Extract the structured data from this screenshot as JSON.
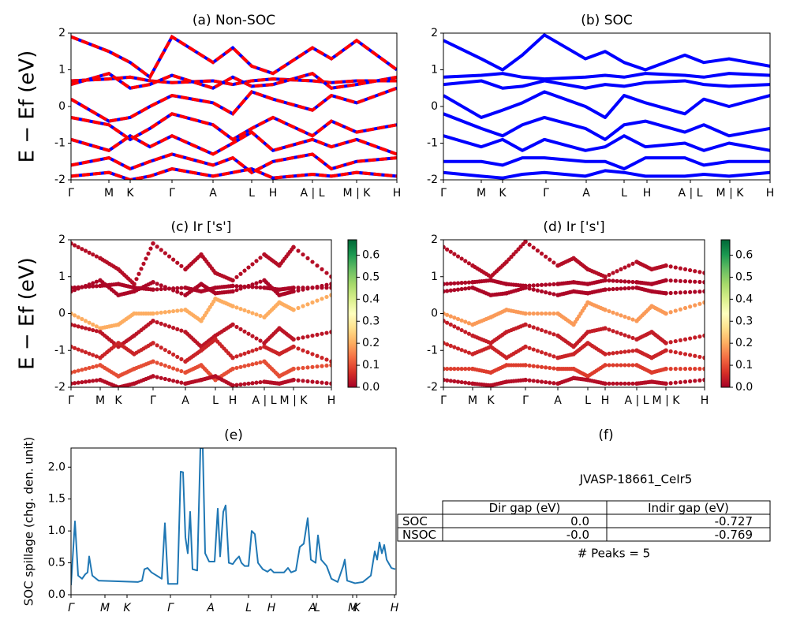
{
  "chart_data": [
    {
      "type": "line",
      "title": "(a) Non-SOC",
      "ylabel": "E − Ef (eV)",
      "color": "#ff0000",
      "dash_color": "#0000ff",
      "line_width": 4,
      "x": [
        0,
        48,
        75,
        100,
        128,
        180,
        205,
        229,
        256,
        306,
        330,
        362,
        413
      ],
      "xlim": [
        0,
        413
      ],
      "xticks": [
        {
          "value": 0,
          "label": "Γ"
        },
        {
          "value": 48,
          "label": "M"
        },
        {
          "value": 75,
          "label": "K"
        },
        {
          "value": 128,
          "label": "Γ"
        },
        {
          "value": 180,
          "label": "A"
        },
        {
          "value": 229,
          "label": "L"
        },
        {
          "value": 256,
          "label": "H"
        },
        {
          "value": 306,
          "label": "A | L"
        },
        {
          "value": 362,
          "label": "M | K"
        },
        {
          "value": 413,
          "label": "H"
        }
      ],
      "ylim": [
        -2,
        2
      ],
      "yticks": [
        -2,
        -1,
        0,
        1,
        2
      ],
      "series": [
        {
          "values": [
            1.9,
            1.5,
            1.2,
            0.8,
            1.9,
            1.2,
            1.6,
            1.1,
            0.9,
            1.6,
            1.3,
            1.8,
            1.0
          ]
        },
        {
          "values": [
            0.7,
            0.75,
            0.8,
            0.7,
            0.65,
            0.7,
            0.6,
            0.7,
            0.75,
            0.7,
            0.65,
            0.7,
            0.7
          ]
        },
        {
          "values": [
            0.6,
            0.9,
            0.5,
            0.6,
            0.85,
            0.5,
            0.8,
            0.55,
            0.6,
            0.9,
            0.5,
            0.6,
            0.8
          ]
        },
        {
          "values": [
            0.2,
            -0.4,
            -0.3,
            0.0,
            0.3,
            0.1,
            -0.2,
            0.4,
            0.2,
            -0.1,
            0.3,
            0.1,
            0.5
          ]
        },
        {
          "values": [
            -0.3,
            -0.5,
            -0.9,
            -0.6,
            -0.2,
            -0.5,
            -0.9,
            -0.6,
            -0.3,
            -0.8,
            -0.4,
            -0.7,
            -0.5
          ]
        },
        {
          "values": [
            -0.9,
            -1.2,
            -0.8,
            -1.1,
            -0.8,
            -1.3,
            -1.0,
            -0.7,
            -1.2,
            -0.9,
            -1.1,
            -0.9,
            -1.3
          ]
        },
        {
          "values": [
            -1.6,
            -1.4,
            -1.7,
            -1.5,
            -1.3,
            -1.6,
            -1.4,
            -1.8,
            -1.5,
            -1.3,
            -1.7,
            -1.5,
            -1.4
          ]
        },
        {
          "values": [
            -1.9,
            -1.8,
            -2.0,
            -1.9,
            -1.7,
            -1.9,
            -1.8,
            -1.7,
            -1.95,
            -1.85,
            -1.9,
            -1.8,
            -1.9
          ]
        }
      ]
    },
    {
      "type": "line",
      "title": "(b) SOC",
      "color": "#0000ff",
      "line_width": 4,
      "x": [
        0,
        48,
        75,
        100,
        128,
        180,
        205,
        229,
        256,
        306,
        330,
        362,
        414
      ],
      "xlim": [
        0,
        414
      ],
      "xticks": [
        {
          "value": 0,
          "label": "Γ"
        },
        {
          "value": 48,
          "label": "M"
        },
        {
          "value": 75,
          "label": "K"
        },
        {
          "value": 130,
          "label": "Γ"
        },
        {
          "value": 181,
          "label": "A"
        },
        {
          "value": 229,
          "label": "L"
        },
        {
          "value": 258,
          "label": "H"
        },
        {
          "value": 313,
          "label": "A | L"
        },
        {
          "value": 363,
          "label": "M | K"
        },
        {
          "value": 414,
          "label": "H"
        }
      ],
      "ylim": [
        -2,
        2
      ],
      "yticks": [
        -2,
        -1,
        0,
        1,
        2
      ],
      "series": [
        {
          "values": [
            1.8,
            1.3,
            1.0,
            1.4,
            1.95,
            1.3,
            1.5,
            1.2,
            1.0,
            1.4,
            1.2,
            1.3,
            1.1
          ]
        },
        {
          "values": [
            0.8,
            0.85,
            0.9,
            0.8,
            0.75,
            0.8,
            0.85,
            0.8,
            0.9,
            0.85,
            0.8,
            0.9,
            0.85
          ]
        },
        {
          "values": [
            0.6,
            0.7,
            0.5,
            0.55,
            0.7,
            0.5,
            0.6,
            0.55,
            0.65,
            0.7,
            0.6,
            0.55,
            0.6
          ]
        },
        {
          "values": [
            0.3,
            -0.3,
            -0.1,
            0.1,
            0.4,
            0.0,
            -0.3,
            0.3,
            0.1,
            -0.2,
            0.2,
            0.0,
            0.3
          ]
        },
        {
          "values": [
            -0.2,
            -0.6,
            -0.8,
            -0.5,
            -0.3,
            -0.6,
            -0.9,
            -0.5,
            -0.4,
            -0.7,
            -0.5,
            -0.8,
            -0.6
          ]
        },
        {
          "values": [
            -0.8,
            -1.1,
            -0.9,
            -1.2,
            -0.9,
            -1.2,
            -1.1,
            -0.8,
            -1.1,
            -1.0,
            -1.2,
            -1.0,
            -1.2
          ]
        },
        {
          "values": [
            -1.5,
            -1.5,
            -1.6,
            -1.4,
            -1.4,
            -1.5,
            -1.5,
            -1.7,
            -1.4,
            -1.4,
            -1.6,
            -1.5,
            -1.5
          ]
        },
        {
          "values": [
            -1.8,
            -1.9,
            -1.95,
            -1.85,
            -1.8,
            -1.9,
            -1.75,
            -1.8,
            -1.9,
            -1.9,
            -1.85,
            -1.9,
            -1.8
          ]
        }
      ]
    },
    {
      "type": "scatter",
      "title": "(c)  Ir ['s']",
      "ylabel": "E − Ef (eV)",
      "colormap": [
        "#a50026",
        "#d73027",
        "#f46d43",
        "#fdae61",
        "#fee08b",
        "#ffffbf",
        "#d9ef8b",
        "#a6d96a",
        "#66bd63",
        "#1a9850",
        "#006837"
      ],
      "clim": [
        0,
        0.67
      ],
      "cticks": [
        {
          "value": 0,
          "label": "0.0"
        },
        0.1,
        0.2,
        0.3,
        0.4,
        0.5,
        0.6
      ],
      "x": [
        0,
        37,
        60,
        80,
        104,
        145,
        165,
        183,
        205,
        245,
        264,
        282,
        330
      ],
      "xlim": [
        0,
        330
      ],
      "xticks": [
        {
          "value": 0,
          "label": "Γ"
        },
        {
          "value": 37,
          "label": "M"
        },
        {
          "value": 60,
          "label": "K"
        },
        {
          "value": 104,
          "label": "Γ"
        },
        {
          "value": 145,
          "label": "A"
        },
        {
          "value": 183,
          "label": "L"
        },
        {
          "value": 205,
          "label": "H"
        },
        {
          "value": 245,
          "label": "A | L"
        },
        {
          "value": 282,
          "label": "M | K"
        },
        {
          "value": 330,
          "label": "H"
        }
      ],
      "ylim": [
        -2,
        2
      ],
      "yticks": [
        -2,
        -1,
        0,
        1,
        2
      ],
      "series": [
        {
          "weight": 0.02,
          "values": [
            1.9,
            1.5,
            1.2,
            0.8,
            1.9,
            1.2,
            1.6,
            1.1,
            0.9,
            1.6,
            1.3,
            1.8,
            1.0
          ]
        },
        {
          "weight": 0.01,
          "values": [
            0.7,
            0.75,
            0.8,
            0.7,
            0.65,
            0.7,
            0.6,
            0.7,
            0.75,
            0.7,
            0.65,
            0.7,
            0.7
          ]
        },
        {
          "weight": 0.01,
          "values": [
            0.6,
            0.9,
            0.5,
            0.6,
            0.85,
            0.5,
            0.8,
            0.55,
            0.6,
            0.9,
            0.5,
            0.6,
            0.8
          ]
        },
        {
          "weight": 0.2,
          "values": [
            0.0,
            -0.4,
            -0.3,
            0.0,
            0.0,
            0.1,
            -0.2,
            0.4,
            0.2,
            -0.1,
            0.3,
            0.1,
            0.5
          ]
        },
        {
          "weight": 0.03,
          "values": [
            -0.3,
            -0.5,
            -0.9,
            -0.6,
            -0.2,
            -0.5,
            -0.9,
            -0.6,
            -0.3,
            -0.8,
            -0.4,
            -0.7,
            -0.5
          ]
        },
        {
          "weight": 0.05,
          "values": [
            -0.9,
            -1.2,
            -0.8,
            -1.1,
            -0.8,
            -1.3,
            -1.0,
            -0.7,
            -1.2,
            -0.9,
            -1.1,
            -0.9,
            -1.3
          ]
        },
        {
          "weight": 0.1,
          "values": [
            -1.6,
            -1.4,
            -1.7,
            -1.5,
            -1.3,
            -1.6,
            -1.4,
            -1.8,
            -1.5,
            -1.3,
            -1.7,
            -1.5,
            -1.4
          ]
        },
        {
          "weight": 0.02,
          "values": [
            -1.9,
            -1.8,
            -2.0,
            -1.9,
            -1.7,
            -1.9,
            -1.8,
            -1.7,
            -1.95,
            -1.85,
            -1.9,
            -1.8,
            -1.9
          ]
        }
      ]
    },
    {
      "type": "scatter",
      "title": "(d) Ir ['s']",
      "colormap": [
        "#a50026",
        "#d73027",
        "#f46d43",
        "#fdae61",
        "#fee08b",
        "#ffffbf",
        "#d9ef8b",
        "#a6d96a",
        "#66bd63",
        "#1a9850",
        "#006837"
      ],
      "clim": [
        0,
        0.67
      ],
      "cticks": [
        {
          "value": 0,
          "label": "0.0"
        },
        0.1,
        0.2,
        0.3,
        0.4,
        0.5,
        0.6
      ],
      "x": [
        0,
        37,
        60,
        80,
        104,
        145,
        165,
        183,
        205,
        245,
        264,
        282,
        331
      ],
      "xlim": [
        0,
        331
      ],
      "xticks": [
        {
          "value": 0,
          "label": "Γ"
        },
        {
          "value": 37,
          "label": "M"
        },
        {
          "value": 60,
          "label": "K"
        },
        {
          "value": 104,
          "label": "Γ"
        },
        {
          "value": 145,
          "label": "A"
        },
        {
          "value": 183,
          "label": "L"
        },
        {
          "value": 205,
          "label": "H"
        },
        {
          "value": 245,
          "label": "A | L"
        },
        {
          "value": 282,
          "label": "M | K"
        },
        {
          "value": 331,
          "label": "H"
        }
      ],
      "ylim": [
        -2,
        2
      ],
      "yticks": [
        -2,
        -1,
        0,
        1,
        2
      ],
      "series": [
        {
          "weight": 0.02,
          "values": [
            1.8,
            1.3,
            1.0,
            1.4,
            1.95,
            1.3,
            1.5,
            1.2,
            1.0,
            1.4,
            1.2,
            1.3,
            1.1
          ]
        },
        {
          "weight": 0.01,
          "values": [
            0.8,
            0.85,
            0.9,
            0.8,
            0.75,
            0.8,
            0.85,
            0.8,
            0.9,
            0.85,
            0.8,
            0.9,
            0.85
          ]
        },
        {
          "weight": 0.01,
          "values": [
            0.6,
            0.7,
            0.5,
            0.55,
            0.7,
            0.5,
            0.6,
            0.55,
            0.65,
            0.7,
            0.6,
            0.55,
            0.6
          ]
        },
        {
          "weight": 0.18,
          "values": [
            0.0,
            -0.3,
            -0.1,
            0.1,
            0.0,
            0.0,
            -0.3,
            0.3,
            0.1,
            -0.2,
            0.2,
            0.0,
            0.3
          ]
        },
        {
          "weight": 0.04,
          "values": [
            -0.2,
            -0.6,
            -0.8,
            -0.5,
            -0.3,
            -0.6,
            -0.9,
            -0.5,
            -0.4,
            -0.7,
            -0.5,
            -0.8,
            -0.6
          ]
        },
        {
          "weight": 0.05,
          "values": [
            -0.8,
            -1.1,
            -0.9,
            -1.2,
            -0.9,
            -1.2,
            -1.1,
            -0.8,
            -1.1,
            -1.0,
            -1.2,
            -1.0,
            -1.2
          ]
        },
        {
          "weight": 0.08,
          "values": [
            -1.5,
            -1.5,
            -1.6,
            -1.4,
            -1.4,
            -1.5,
            -1.5,
            -1.7,
            -1.4,
            -1.4,
            -1.6,
            -1.5,
            -1.5
          ]
        },
        {
          "weight": 0.02,
          "values": [
            -1.8,
            -1.9,
            -1.95,
            -1.85,
            -1.8,
            -1.9,
            -1.75,
            -1.8,
            -1.9,
            -1.9,
            -1.85,
            -1.9,
            -1.8
          ]
        }
      ]
    },
    {
      "type": "line",
      "title": "(e)",
      "ylabel": "SOC spillage (chg. den. unit)",
      "color": "#1f77b4",
      "line_width": 2,
      "italic_xticks": true,
      "x": [
        0,
        5,
        9,
        14,
        18,
        21,
        23,
        27,
        35,
        60,
        85,
        90,
        93,
        97,
        102,
        115,
        119,
        123,
        135,
        139,
        142,
        145,
        148,
        151,
        154,
        160,
        164,
        167,
        170,
        175,
        182,
        186,
        189,
        193,
        196,
        200,
        205,
        209,
        213,
        216,
        220,
        225,
        229,
        233,
        237,
        243,
        249,
        253,
        257,
        270,
        275,
        279,
        285,
        290,
        295,
        300,
        304,
        310,
        313,
        317,
        324,
        330,
        338,
        345,
        347,
        350,
        360,
        370,
        380,
        385,
        388,
        391,
        394,
        397,
        400,
        406,
        411
      ],
      "values": [
        0.15,
        1.15,
        0.3,
        0.25,
        0.32,
        0.35,
        0.6,
        0.3,
        0.22,
        0.21,
        0.2,
        0.22,
        0.4,
        0.42,
        0.35,
        0.25,
        1.12,
        0.17,
        0.17,
        1.93,
        1.92,
        0.9,
        0.65,
        1.3,
        0.4,
        0.38,
        2.3,
        2.3,
        0.65,
        0.52,
        0.52,
        1.35,
        0.6,
        1.3,
        1.4,
        0.5,
        0.48,
        0.55,
        0.6,
        0.5,
        0.45,
        0.45,
        1.0,
        0.95,
        0.5,
        0.4,
        0.36,
        0.4,
        0.35,
        0.35,
        0.42,
        0.35,
        0.38,
        0.75,
        0.8,
        1.2,
        0.55,
        0.5,
        0.93,
        0.55,
        0.45,
        0.25,
        0.2,
        0.45,
        0.55,
        0.22,
        0.18,
        0.2,
        0.3,
        0.68,
        0.55,
        0.82,
        0.65,
        0.78,
        0.55,
        0.42,
        0.4
      ],
      "xlim": [
        0,
        412
      ],
      "xticks": [
        {
          "value": 0,
          "label": "Γ"
        },
        {
          "value": 43,
          "label": "M"
        },
        {
          "value": 71,
          "label": "K"
        },
        {
          "value": 126,
          "label": "Γ"
        },
        {
          "value": 177,
          "label": "A"
        },
        {
          "value": 225,
          "label": "L"
        },
        {
          "value": 254,
          "label": "H"
        },
        {
          "value": 306,
          "label": "A"
        },
        {
          "value": 312,
          "label": "L"
        },
        {
          "value": 357,
          "label": "M"
        },
        {
          "value": 362,
          "label": "K"
        },
        {
          "value": 410,
          "label": "H"
        }
      ],
      "ylim": [
        0,
        2.3
      ],
      "yticks": [
        {
          "value": 0,
          "label": "0.0"
        },
        0.5,
        {
          "value": 1,
          "label": "1.0"
        },
        1.5,
        {
          "value": 2,
          "label": "2.0"
        }
      ]
    },
    {
      "type": "table",
      "title": "(f)",
      "caption": "JVASP-18661_CeIr5",
      "columns": [
        "Dir gap (eV)",
        "Indir gap (eV)"
      ],
      "rows": [
        [
          "SOC",
          "0.0",
          "-0.727"
        ],
        [
          "NSOC",
          "-0.0",
          "-0.769"
        ]
      ],
      "footer": "# Peaks = 5"
    }
  ]
}
